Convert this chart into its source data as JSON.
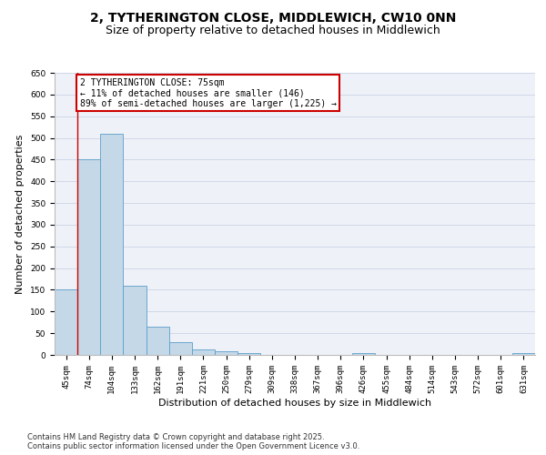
{
  "title_line1": "2, TYTHERINGTON CLOSE, MIDDLEWICH, CW10 0NN",
  "title_line2": "Size of property relative to detached houses in Middlewich",
  "xlabel": "Distribution of detached houses by size in Middlewich",
  "ylabel": "Number of detached properties",
  "categories": [
    "45sqm",
    "74sqm",
    "104sqm",
    "133sqm",
    "162sqm",
    "191sqm",
    "221sqm",
    "250sqm",
    "279sqm",
    "309sqm",
    "338sqm",
    "367sqm",
    "396sqm",
    "426sqm",
    "455sqm",
    "484sqm",
    "514sqm",
    "543sqm",
    "572sqm",
    "601sqm",
    "631sqm"
  ],
  "values": [
    150,
    450,
    510,
    160,
    65,
    30,
    13,
    8,
    5,
    0,
    0,
    0,
    0,
    5,
    0,
    0,
    0,
    0,
    0,
    0,
    5
  ],
  "bar_color": "#c5d8e8",
  "bar_edge_color": "#5a9ec9",
  "annotation_text_line1": "2 TYTHERINGTON CLOSE: 75sqm",
  "annotation_text_line2": "← 11% of detached houses are smaller (146)",
  "annotation_text_line3": "89% of semi-detached houses are larger (1,225) →",
  "annotation_box_color": "#cc0000",
  "ylim": [
    0,
    650
  ],
  "yticks": [
    0,
    50,
    100,
    150,
    200,
    250,
    300,
    350,
    400,
    450,
    500,
    550,
    600,
    650
  ],
  "grid_color": "#d0d8e8",
  "bg_color": "#eef2f8",
  "footer_line1": "Contains HM Land Registry data © Crown copyright and database right 2025.",
  "footer_line2": "Contains public sector information licensed under the Open Government Licence v3.0.",
  "title_fontsize": 10,
  "subtitle_fontsize": 9,
  "axis_label_fontsize": 8,
  "tick_fontsize": 6.5,
  "annotation_fontsize": 7,
  "footer_fontsize": 6
}
